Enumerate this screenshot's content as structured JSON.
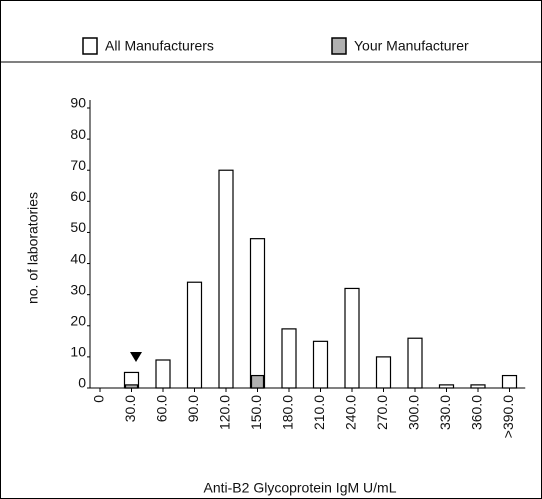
{
  "chart_data": {
    "type": "bar",
    "xlabel": "Anti-B2 Glycoprotein IgM U/mL",
    "ylabel": "no. of laboratories",
    "categories": [
      "0",
      "30.0",
      "60.0",
      "90.0",
      "120.0",
      "150.0",
      "180.0",
      "210.0",
      "240.0",
      "270.0",
      "300.0",
      "330.0",
      "360.0",
      ">390.0"
    ],
    "series": [
      {
        "name": "All Manufacturers",
        "color": "#ffffff",
        "values": [
          0,
          5,
          9,
          34,
          70,
          48,
          19,
          15,
          32,
          10,
          16,
          1,
          1,
          4
        ]
      },
      {
        "name": "Your Manufacturer",
        "color": "#b0b0b0",
        "values": [
          0,
          1,
          0,
          0,
          0,
          4,
          0,
          0,
          0,
          0,
          0,
          0,
          0,
          0
        ]
      }
    ],
    "ylim": [
      0,
      90
    ],
    "yticks": [
      0,
      10,
      20,
      30,
      40,
      50,
      60,
      70,
      80,
      90
    ]
  }
}
